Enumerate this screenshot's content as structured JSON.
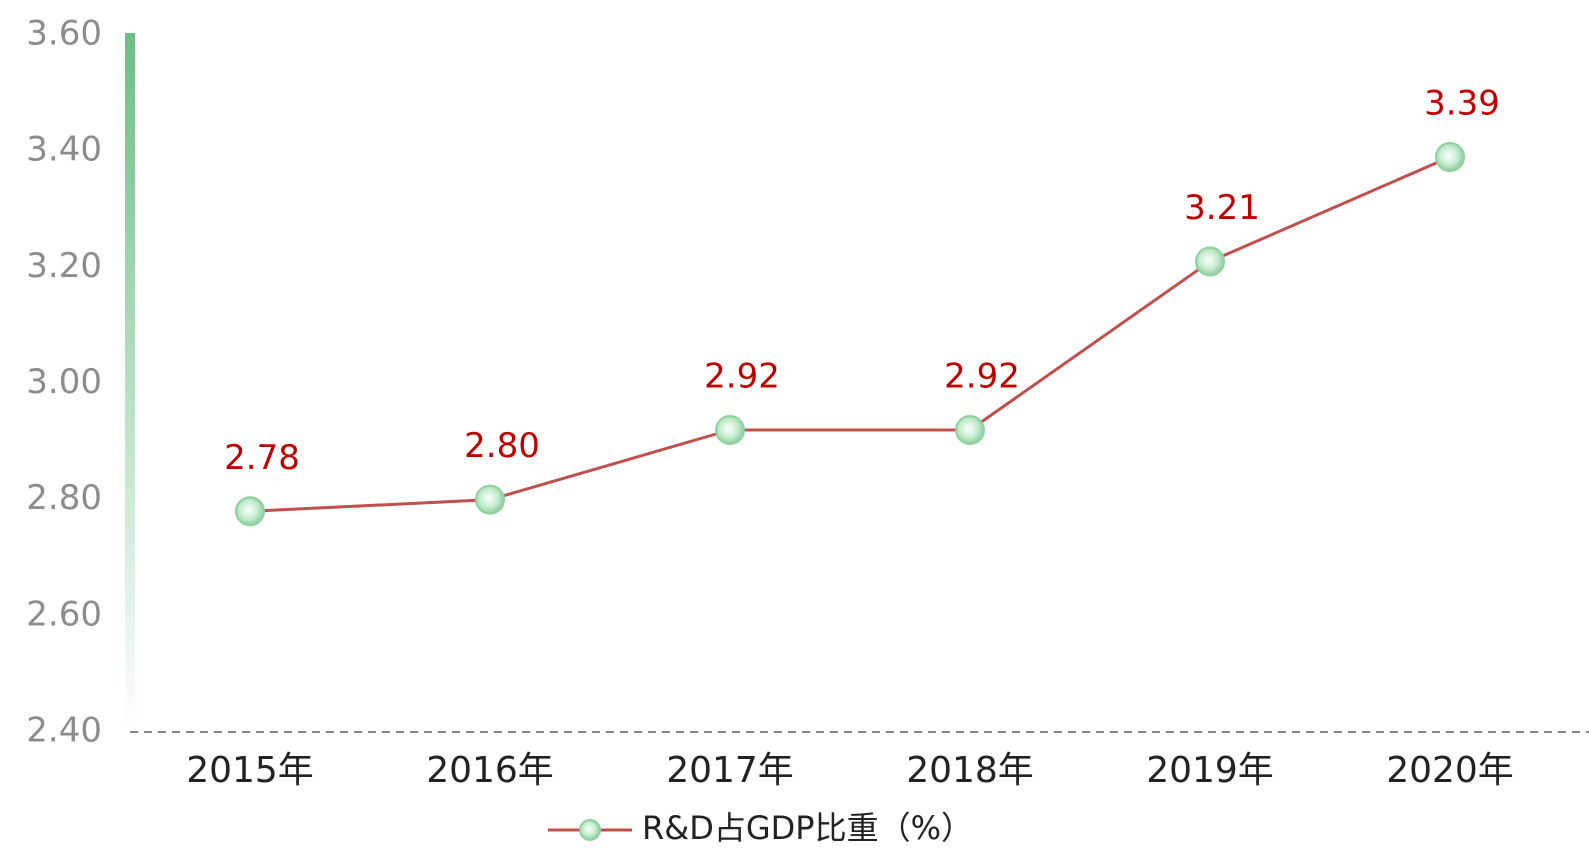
{
  "chart_data": {
    "type": "line",
    "categories": [
      "2015年",
      "2016年",
      "2017年",
      "2018年",
      "2019年",
      "2020年"
    ],
    "series": [
      {
        "name": "R&D占GDP比重（%）",
        "color": "#c0504d",
        "marker_color": "#8fd19e",
        "values": [
          2.78,
          2.8,
          2.92,
          2.92,
          3.21,
          3.39
        ],
        "value_labels": [
          "2.78",
          "2.80",
          "2.92",
          "2.92",
          "3.21",
          "3.39"
        ],
        "label_color": "#c00000"
      }
    ],
    "ylim": [
      2.4,
      3.6
    ],
    "yticks": [
      {
        "value": 2.4,
        "label": "2.40"
      },
      {
        "value": 2.6,
        "label": "2.60"
      },
      {
        "value": 2.8,
        "label": "2.80"
      },
      {
        "value": 3.0,
        "label": "3.00"
      },
      {
        "value": 3.2,
        "label": "3.20"
      },
      {
        "value": 3.4,
        "label": "3.40"
      },
      {
        "value": 3.6,
        "label": "3.60"
      }
    ],
    "grid": false,
    "legend": "bottom"
  }
}
